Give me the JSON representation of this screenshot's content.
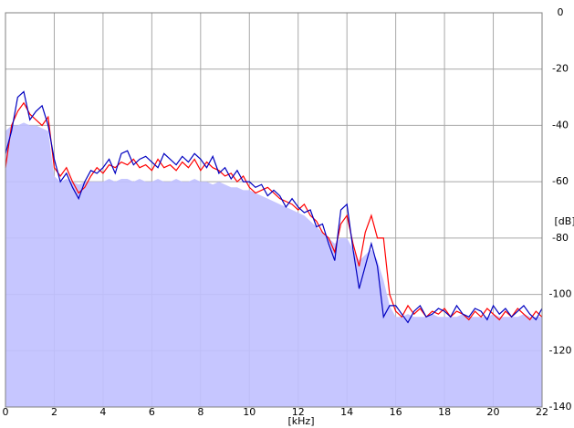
{
  "chart_data": {
    "type": "line",
    "x_label": "[kHz]",
    "y_label": "[dB]",
    "xlim": [
      0,
      22
    ],
    "xticks": [
      0,
      2,
      4,
      6,
      8,
      10,
      12,
      14,
      16,
      18,
      20,
      22
    ],
    "ylim": [
      -140,
      0
    ],
    "yticks": [
      0,
      -20,
      -40,
      -60,
      -80,
      -100,
      -120,
      -140
    ],
    "grid": true,
    "x": [
      0,
      0.25,
      0.5,
      0.75,
      1,
      1.25,
      1.5,
      1.75,
      2,
      2.25,
      2.5,
      2.75,
      3,
      3.25,
      3.5,
      3.75,
      4,
      4.25,
      4.5,
      4.75,
      5,
      5.25,
      5.5,
      5.75,
      6,
      6.25,
      6.5,
      6.75,
      7,
      7.25,
      7.5,
      7.75,
      8,
      8.25,
      8.5,
      8.75,
      9,
      9.25,
      9.5,
      9.75,
      10,
      10.25,
      10.5,
      10.75,
      11,
      11.25,
      11.5,
      11.75,
      12,
      12.25,
      12.5,
      12.75,
      13,
      13.25,
      13.5,
      13.75,
      14,
      14.25,
      14.5,
      14.75,
      15,
      15.25,
      15.5,
      15.75,
      16,
      16.25,
      16.5,
      16.75,
      17,
      17.25,
      17.5,
      17.75,
      18,
      18.25,
      18.5,
      18.75,
      19,
      19.25,
      19.5,
      19.75,
      20,
      20.25,
      20.5,
      20.75,
      21,
      21.25,
      21.5,
      21.75,
      22
    ],
    "series": [
      {
        "style": "area",
        "color": "#c0c0ff",
        "values": [
          -42,
          -40,
          -40,
          -39,
          -40,
          -40,
          -41,
          -42,
          -58,
          -60,
          -59,
          -60,
          -61,
          -60,
          -60,
          -60,
          -60,
          -59,
          -60,
          -59,
          -59,
          -60,
          -59,
          -60,
          -60,
          -59,
          -60,
          -60,
          -59,
          -60,
          -60,
          -59,
          -60,
          -60,
          -61,
          -60,
          -61,
          -62,
          -62,
          -63,
          -63,
          -64,
          -65,
          -66,
          -67,
          -68,
          -69,
          -70,
          -71,
          -72,
          -74,
          -76,
          -78,
          -80,
          -82,
          -80,
          -80,
          -84,
          -88,
          -86,
          -84,
          -88,
          -95,
          -104,
          -108,
          -108,
          -107,
          -108,
          -108,
          -108,
          -107,
          -108,
          -108,
          -108,
          -108,
          -107,
          -108,
          -108,
          -108,
          -108,
          -107,
          -108,
          -108,
          -108,
          -108,
          -107,
          -108,
          -108,
          -108
        ]
      },
      {
        "style": "line",
        "color": "#ff0000",
        "values": [
          -55,
          -40,
          -35,
          -32,
          -36,
          -38,
          -40,
          -37,
          -55,
          -58,
          -55,
          -60,
          -64,
          -62,
          -58,
          -55,
          -57,
          -54,
          -55,
          -53,
          -54,
          -52,
          -55,
          -54,
          -56,
          -52,
          -55,
          -54,
          -56,
          -53,
          -55,
          -52,
          -56,
          -53,
          -55,
          -56,
          -58,
          -57,
          -60,
          -58,
          -62,
          -64,
          -63,
          -62,
          -64,
          -66,
          -67,
          -68,
          -70,
          -68,
          -72,
          -74,
          -78,
          -80,
          -85,
          -75,
          -72,
          -82,
          -90,
          -78,
          -72,
          -80,
          -80,
          -100,
          -106,
          -108,
          -104,
          -107,
          -105,
          -108,
          -106,
          -107,
          -105,
          -108,
          -106,
          -107,
          -109,
          -106,
          -108,
          -105,
          -107,
          -109,
          -106,
          -108,
          -105,
          -107,
          -109,
          -106,
          -108
        ]
      },
      {
        "style": "line",
        "color": "#0000c0",
        "values": [
          -50,
          -42,
          -30,
          -28,
          -38,
          -35,
          -33,
          -40,
          -52,
          -60,
          -57,
          -62,
          -66,
          -60,
          -56,
          -57,
          -55,
          -52,
          -57,
          -50,
          -49,
          -54,
          -52,
          -51,
          -53,
          -55,
          -50,
          -52,
          -54,
          -51,
          -53,
          -50,
          -52,
          -55,
          -51,
          -57,
          -55,
          -59,
          -56,
          -60,
          -60,
          -62,
          -61,
          -65,
          -63,
          -65,
          -69,
          -66,
          -69,
          -71,
          -70,
          -76,
          -75,
          -82,
          -88,
          -70,
          -68,
          -84,
          -98,
          -90,
          -82,
          -90,
          -108,
          -104,
          -104,
          -107,
          -110,
          -106,
          -104,
          -108,
          -107,
          -105,
          -106,
          -108,
          -104,
          -107,
          -108,
          -105,
          -106,
          -109,
          -104,
          -107,
          -105,
          -108,
          -106,
          -104,
          -107,
          -109,
          -105
        ]
      }
    ]
  }
}
